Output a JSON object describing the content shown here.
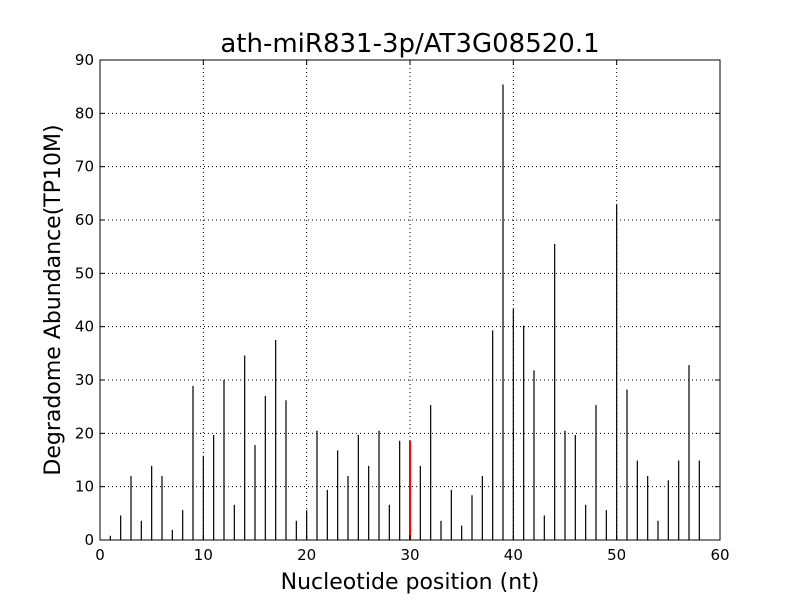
{
  "chart_data": {
    "type": "bar",
    "title": "ath-miR831-3p/AT3G08520.1",
    "xlabel": "Nucleotide position (nt)",
    "ylabel": "Degradome Abundance(TP10M)",
    "xlim": [
      0,
      60
    ],
    "ylim": [
      0,
      90
    ],
    "xticks": [
      "0",
      "10",
      "20",
      "30",
      "40",
      "50",
      "60"
    ],
    "yticks": [
      "0",
      "10",
      "20",
      "30",
      "40",
      "50",
      "60",
      "70",
      "80",
      "90"
    ],
    "grid": true,
    "bar_color": "#000000",
    "highlight_color": "#ff0000",
    "highlight_position": 30,
    "x": [
      1,
      2,
      3,
      4,
      5,
      6,
      7,
      8,
      9,
      10,
      11,
      12,
      13,
      14,
      15,
      16,
      17,
      18,
      19,
      20,
      21,
      22,
      23,
      24,
      25,
      26,
      27,
      28,
      29,
      30,
      31,
      32,
      33,
      34,
      35,
      36,
      37,
      38,
      39,
      40,
      41,
      42,
      43,
      44,
      45,
      46,
      47,
      48,
      49,
      50,
      51,
      52,
      53,
      54,
      55,
      56,
      57,
      58
    ],
    "values": [
      0.8,
      4.6,
      12.0,
      3.6,
      13.9,
      12.0,
      1.9,
      5.6,
      28.9,
      15.8,
      19.7,
      30.0,
      6.6,
      34.6,
      17.8,
      27.0,
      37.5,
      26.2,
      3.6,
      5.6,
      20.5,
      9.4,
      16.8,
      12.0,
      19.7,
      13.9,
      20.5,
      6.6,
      18.6,
      18.6,
      13.9,
      25.3,
      3.6,
      9.4,
      2.7,
      8.4,
      12.0,
      39.3,
      85.4,
      43.3,
      40.2,
      31.8,
      4.6,
      55.5,
      20.5,
      19.7,
      6.6,
      25.3,
      5.6,
      62.9,
      28.2,
      14.9,
      12.0,
      3.6,
      11.2,
      14.9,
      32.8,
      14.9
    ]
  }
}
